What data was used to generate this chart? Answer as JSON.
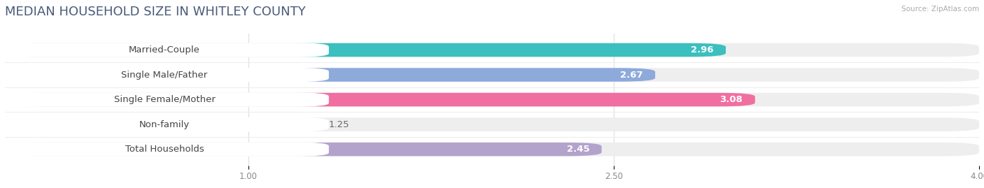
{
  "title": "MEDIAN HOUSEHOLD SIZE IN WHITLEY COUNTY",
  "source": "Source: ZipAtlas.com",
  "categories": [
    "Married-Couple",
    "Single Male/Father",
    "Single Female/Mother",
    "Non-family",
    "Total Households"
  ],
  "values": [
    2.96,
    2.67,
    3.08,
    1.25,
    2.45
  ],
  "bar_colors": [
    "#3bbfbf",
    "#8eaadb",
    "#f06fa0",
    "#f5c99a",
    "#b3a3cc"
  ],
  "label_text_colors": [
    "#3bbfbf",
    "#6688cc",
    "#e05580",
    "#c8963c",
    "#8870aa"
  ],
  "xlim": [
    0,
    4.0
  ],
  "xmin": 0.0,
  "xticks": [
    1.0,
    2.5,
    4.0
  ],
  "background_color": "#ffffff",
  "bar_bg_color": "#eeeeee",
  "title_fontsize": 13,
  "label_fontsize": 9.5,
  "value_fontsize": 9.5,
  "title_color": "#4a5a7a"
}
